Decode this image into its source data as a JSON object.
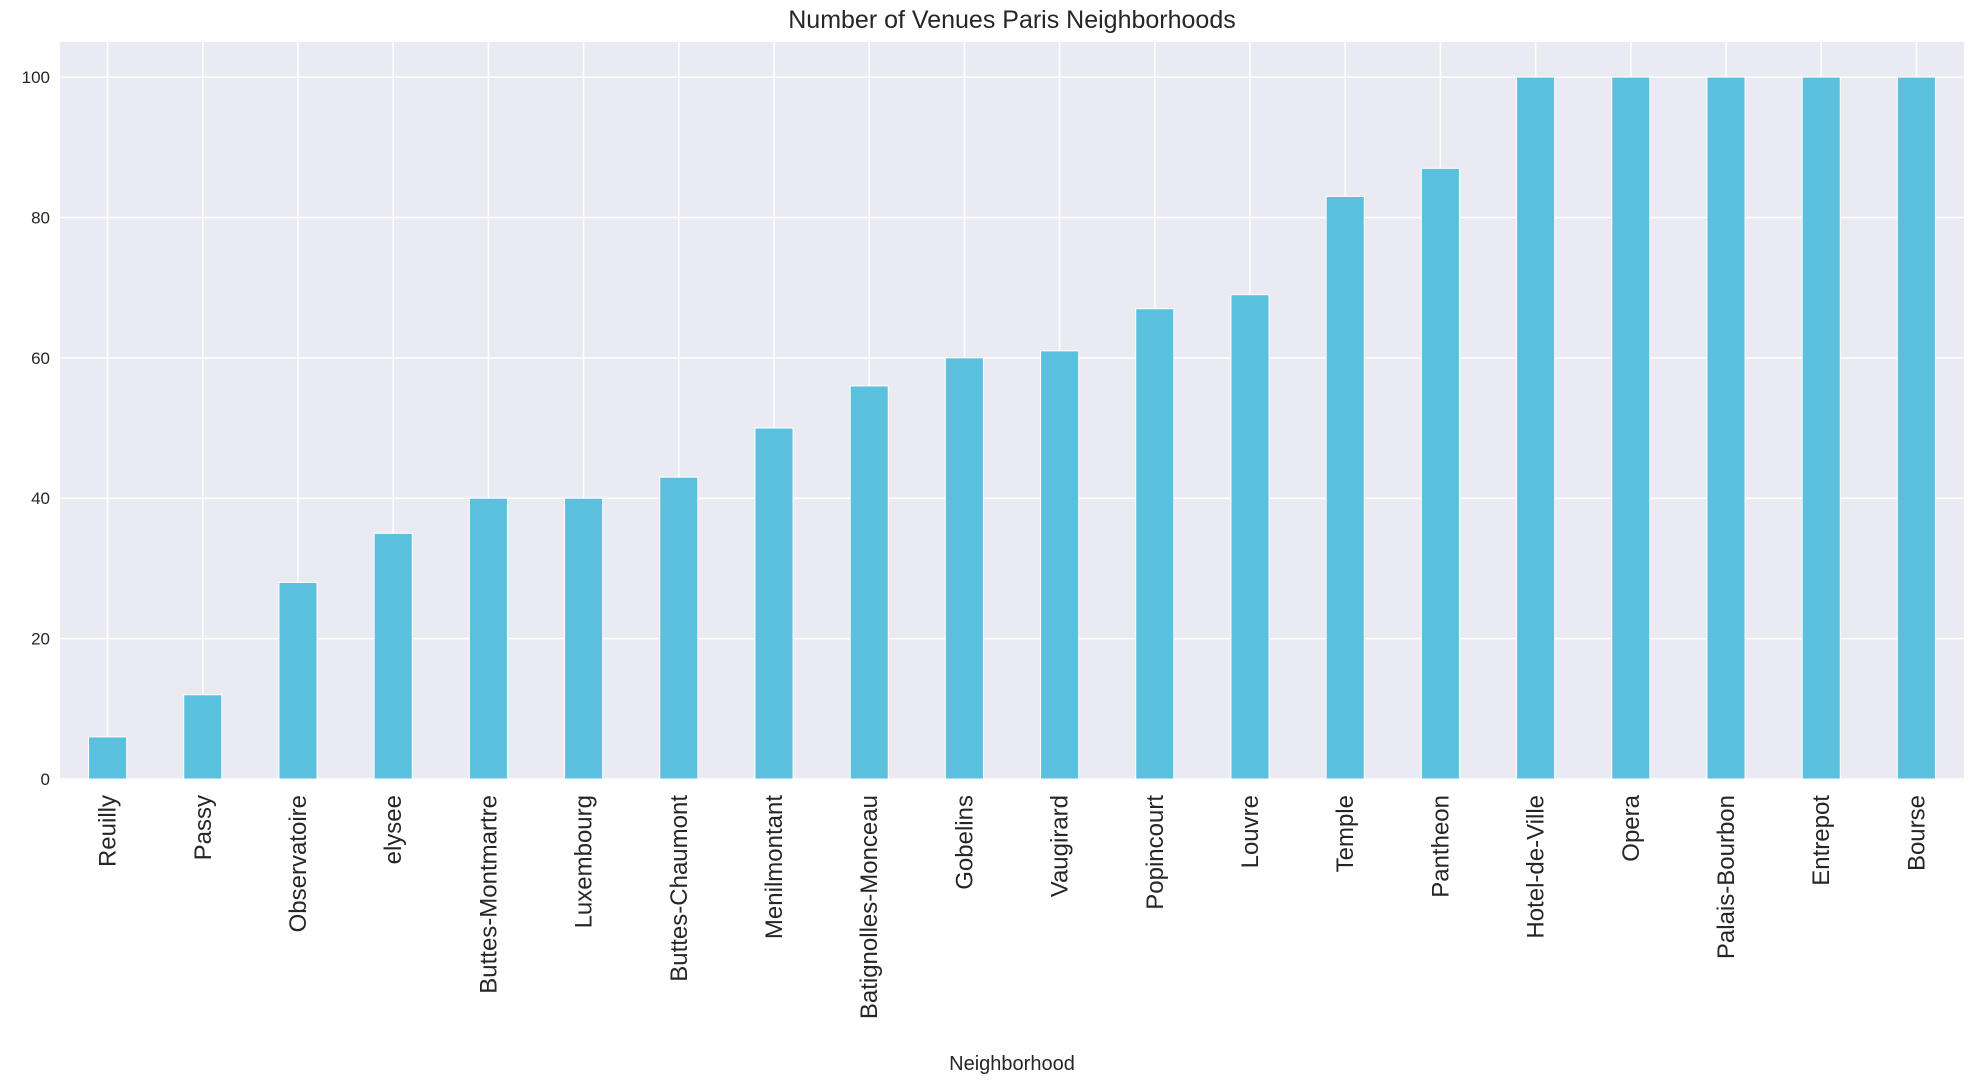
{
  "chart_data": {
    "type": "bar",
    "title": "Number of Venues Paris Neighborhoods",
    "xlabel": "Neighborhood",
    "ylabel": "",
    "ylim": [
      0,
      105
    ],
    "yticks": [
      0,
      20,
      40,
      60,
      80,
      100
    ],
    "grid": true,
    "legend": "none",
    "bar_color": "#5bc0de",
    "background_color": "#eaeaf2",
    "grid_color": "#ffffff",
    "categories": [
      "Reuilly",
      "Passy",
      "Observatoire",
      "elysee",
      "Buttes-Montmartre",
      "Luxembourg",
      "Buttes-Chaumont",
      "Menilmontant",
      "Batignolles-Monceau",
      "Gobelins",
      "Vaugirard",
      "Popincourt",
      "Louvre",
      "Temple",
      "Pantheon",
      "Hotel-de-Ville",
      "Opera",
      "Palais-Bourbon",
      "Entrepot",
      "Bourse"
    ],
    "values": [
      6,
      12,
      28,
      35,
      40,
      40,
      43,
      50,
      56,
      60,
      61,
      67,
      69,
      83,
      87,
      100,
      100,
      100,
      100,
      100
    ]
  }
}
